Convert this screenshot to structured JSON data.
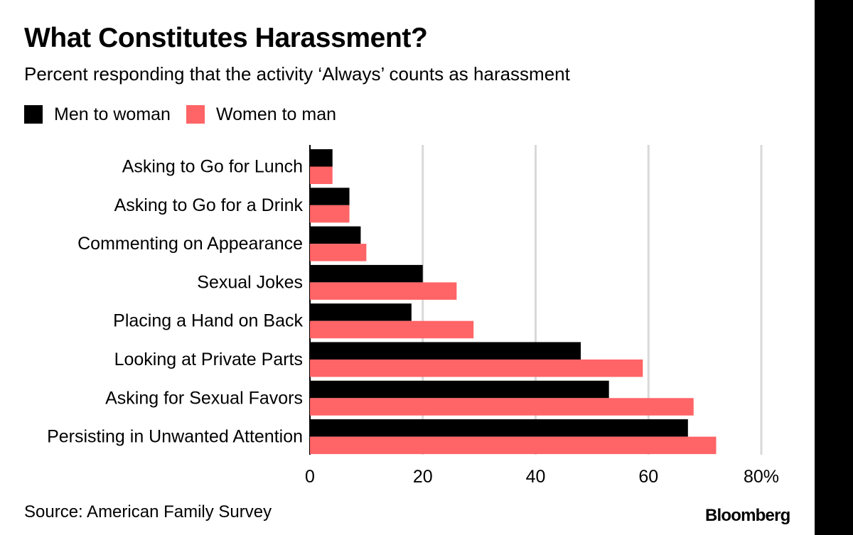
{
  "title": "What Constitutes Harassment?",
  "subtitle": "Percent responding that the activity ‘Always’ counts as harassment",
  "legend": [
    {
      "label": "Men to woman",
      "color": "#000000"
    },
    {
      "label": "Women to man",
      "color": "#ff6466"
    }
  ],
  "source": "Source: American Family Survey",
  "brand": "Bloomberg",
  "chart_data": {
    "type": "bar",
    "orientation": "horizontal",
    "title": "What Constitutes Harassment?",
    "subtitle": "Percent responding that the activity ‘Always’ counts as harassment",
    "categories": [
      "Asking to Go for Lunch",
      "Asking to Go for a Drink",
      "Commenting on Appearance",
      "Sexual Jokes",
      "Placing a Hand on Back",
      "Looking at Private Parts",
      "Asking for Sexual Favors",
      "Persisting in Unwanted Attention"
    ],
    "series": [
      {
        "name": "Men to woman",
        "color": "#000000",
        "values": [
          4,
          7,
          9,
          20,
          18,
          48,
          53,
          67
        ]
      },
      {
        "name": "Women to man",
        "color": "#ff6466",
        "values": [
          4,
          7,
          10,
          26,
          29,
          59,
          68,
          72
        ]
      }
    ],
    "xlim": [
      0,
      80
    ],
    "xticks": [
      0,
      20,
      40,
      60,
      80
    ],
    "xtick_labels": [
      "0",
      "20",
      "40",
      "60",
      "80%"
    ],
    "grid": true,
    "legend_position": "top-left"
  }
}
